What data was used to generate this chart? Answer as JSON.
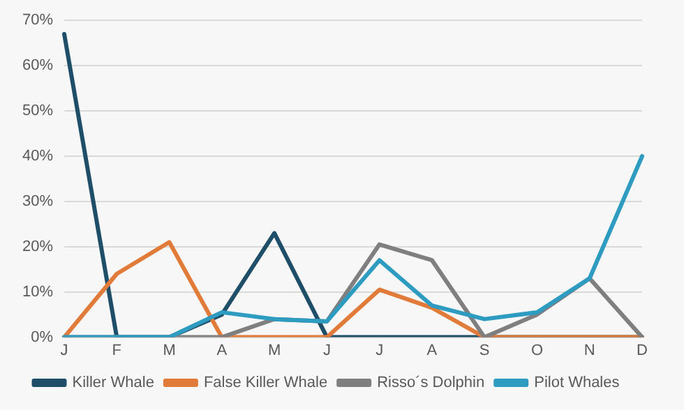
{
  "chart_data": {
    "type": "line",
    "categories": [
      "J",
      "F",
      "M",
      "A",
      "M",
      "J",
      "J",
      "A",
      "S",
      "O",
      "N",
      "D"
    ],
    "series": [
      {
        "name": "Killer Whale",
        "color": "#1f4e69",
        "values": [
          67,
          0,
          0,
          5,
          23,
          0,
          0,
          0,
          0,
          0,
          0,
          0
        ]
      },
      {
        "name": "False Killer Whale",
        "color": "#e07b39",
        "values": [
          0,
          14,
          21,
          0,
          0,
          0,
          10.5,
          6.5,
          0,
          0,
          0,
          0
        ]
      },
      {
        "name": "Risso´s Dolphin",
        "color": "#7f7f7f",
        "values": [
          0,
          0,
          0,
          0,
          4,
          3.5,
          20.5,
          17,
          0,
          5,
          13,
          0
        ]
      },
      {
        "name": "Pilot Whales",
        "color": "#2e9bc0",
        "values": [
          0,
          0,
          0,
          5.5,
          4,
          3.5,
          17,
          7,
          4,
          5.5,
          13,
          40
        ]
      }
    ],
    "ylim": [
      0,
      70
    ],
    "yticks": [
      {
        "value": 0,
        "label": "0%"
      },
      {
        "value": 10,
        "label": "10%"
      },
      {
        "value": 20,
        "label": "20%"
      },
      {
        "value": 30,
        "label": "30%"
      },
      {
        "value": 40,
        "label": "40%"
      },
      {
        "value": 50,
        "label": "50%"
      },
      {
        "value": 60,
        "label": "60%"
      },
      {
        "value": 70,
        "label": "70%"
      }
    ],
    "grid": "y",
    "legend": "bottom",
    "marker": "none",
    "line_style": "solid"
  }
}
